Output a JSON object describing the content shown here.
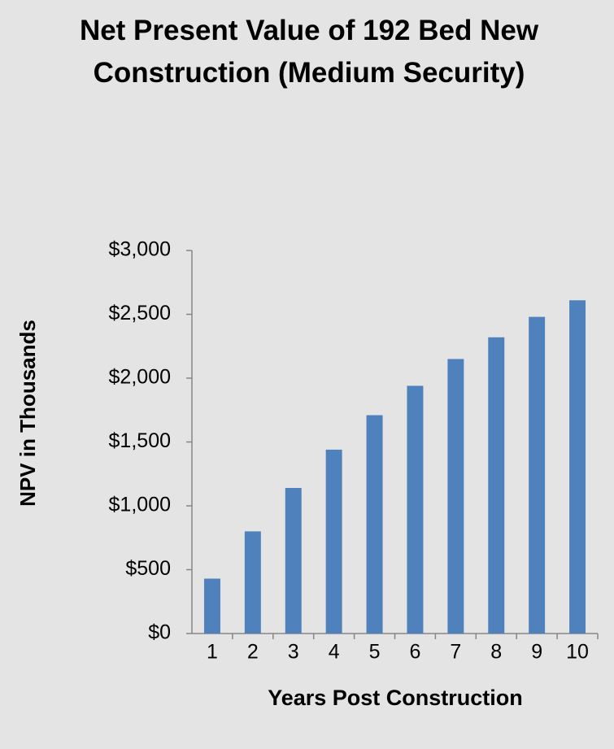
{
  "chart_data": {
    "type": "bar",
    "title": "Net Present Value of 192 Bed New Construction (Medium Security)",
    "x_label": "Years Post Construction",
    "y_label": "NPV in Thousands",
    "categories": [
      "1",
      "2",
      "3",
      "4",
      "5",
      "6",
      "7",
      "8",
      "9",
      "10"
    ],
    "values": [
      430,
      800,
      1140,
      1440,
      1710,
      1940,
      2150,
      2320,
      2480,
      2610
    ],
    "color": "#4f81bd",
    "ylim": [
      0,
      3000
    ],
    "yticks": [
      {
        "value": 0,
        "label": "$0"
      },
      {
        "value": 500,
        "label": "$500"
      },
      {
        "value": 1000,
        "label": "$1,000"
      },
      {
        "value": 1500,
        "label": "$1,500"
      },
      {
        "value": 2000,
        "label": "$2,000"
      },
      {
        "value": 2500,
        "label": "$2,500"
      },
      {
        "value": 3000,
        "label": "$3,000"
      }
    ],
    "grid": false
  }
}
